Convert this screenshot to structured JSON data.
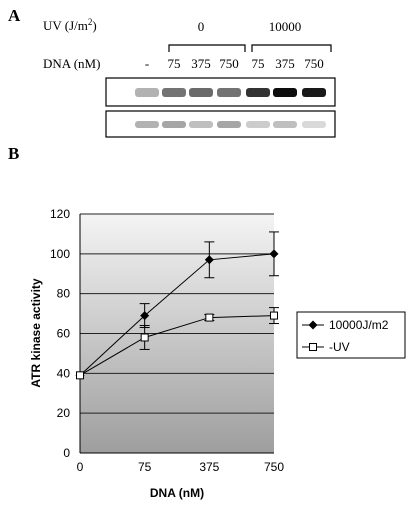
{
  "panel_a": {
    "label": "A",
    "uv_label": "UV (J/m",
    "uv_sup": "2",
    "uv_close": ")",
    "uv_groups": [
      "0",
      "10000"
    ],
    "dna_label": "DNA  (nM)",
    "lanes": [
      "-",
      "75",
      "375",
      "750",
      "75",
      "375",
      "750"
    ],
    "blot_top_intensity": [
      0.3,
      0.55,
      0.58,
      0.55,
      0.8,
      0.95,
      0.9
    ],
    "blot_bottom_intensity": [
      0.3,
      0.35,
      0.25,
      0.35,
      0.2,
      0.25,
      0.15
    ]
  },
  "panel_b": {
    "label": "B",
    "chart_data": {
      "type": "line",
      "x": [
        "0",
        "75",
        "375",
        "750"
      ],
      "xlabel": "DNA (nM)",
      "ylabel": "ATR kinase activity",
      "ylim": [
        0,
        120
      ],
      "yticks": [
        0,
        20,
        40,
        60,
        80,
        100,
        120
      ],
      "grid": true,
      "legend_position": "right",
      "series": [
        {
          "name": "10000J/m2",
          "marker": "filled-diamond",
          "values": [
            39,
            69,
            97,
            100
          ],
          "error": [
            0,
            6,
            9,
            11
          ]
        },
        {
          "name": "-UV",
          "marker": "open-square",
          "values": [
            39,
            58,
            68,
            69
          ],
          "error": [
            0,
            6,
            1.5,
            4
          ]
        }
      ]
    },
    "colors": {
      "plot_top": "#f2f2f2",
      "plot_bottom": "#a0a0a0",
      "grid": "#222222",
      "line": "#000000"
    }
  }
}
